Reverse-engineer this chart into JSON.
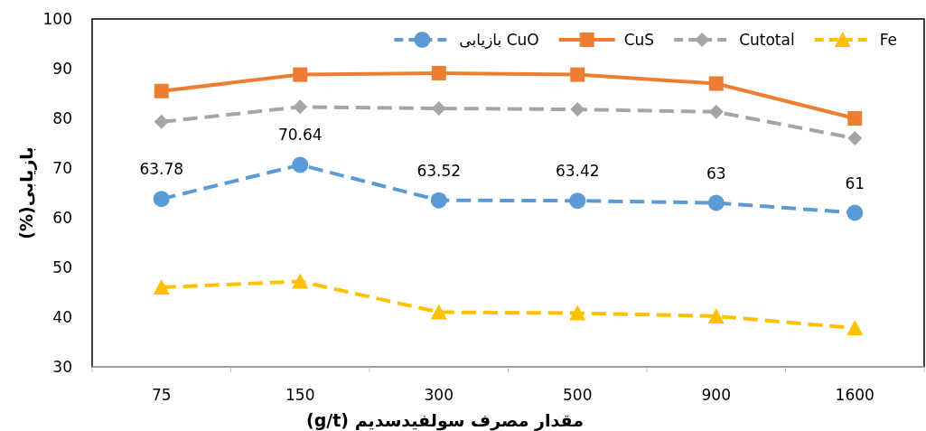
{
  "chart_data": {
    "type": "line",
    "xlabel": "مقدار مصرف سولفیدسدیم (g/t)",
    "ylabel": "بازیابی(%)",
    "categories": [
      "75",
      "150",
      "300",
      "500",
      "900",
      "1600"
    ],
    "ylim": [
      30,
      100
    ],
    "yticks": [
      30,
      40,
      50,
      60,
      70,
      80,
      90,
      100
    ],
    "grid": false,
    "legend": "top right",
    "series": [
      {
        "name": "بازیابی CuO",
        "color": "#5b9bd5",
        "marker": "circle",
        "line_style": "dashed",
        "values": [
          63.78,
          70.64,
          63.52,
          63.42,
          63,
          61
        ],
        "value_labels": [
          "63.78",
          "70.64",
          "63.52",
          "63.42",
          "63",
          "61"
        ]
      },
      {
        "name": "CuS",
        "color": "#ed7d31",
        "marker": "square",
        "line_style": "solid",
        "values": [
          85.5,
          88.8,
          89.1,
          88.8,
          87,
          80
        ]
      },
      {
        "name": "Cutotal",
        "color": "#a5a5a5",
        "marker": "diamond",
        "line_style": "dashed",
        "values": [
          79.3,
          82.3,
          82,
          81.8,
          81.3,
          76
        ]
      },
      {
        "name": "Fe",
        "color": "#ffc000",
        "marker": "triangle",
        "line_style": "dashed",
        "values": [
          46,
          47.2,
          41,
          40.8,
          40.2,
          37.8
        ]
      }
    ]
  }
}
